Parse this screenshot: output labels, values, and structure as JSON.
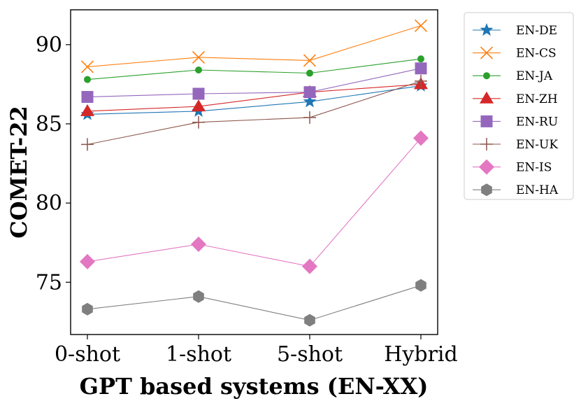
{
  "chart_data": {
    "type": "line",
    "title": "",
    "xlabel": "GPT based systems (EN-XX)",
    "ylabel": "COMET-22",
    "categories": [
      "0-shot",
      "1-shot",
      "5-shot",
      "Hybrid"
    ],
    "ylim": [
      71.7,
      92.2
    ],
    "yticks": [
      75,
      80,
      85,
      90
    ],
    "grid": false,
    "legend_position": "outside-right-top",
    "series": [
      {
        "name": "EN-DE",
        "values": [
          85.6,
          85.8,
          86.4,
          87.4
        ],
        "color": "#1f77b4",
        "marker": "star"
      },
      {
        "name": "EN-CS",
        "values": [
          88.6,
          89.2,
          89.0,
          91.2
        ],
        "color": "#ff7f0e",
        "marker": "x"
      },
      {
        "name": "EN-JA",
        "values": [
          87.8,
          88.4,
          88.2,
          89.1
        ],
        "color": "#2ca02c",
        "marker": "circle"
      },
      {
        "name": "EN-ZH",
        "values": [
          85.8,
          86.1,
          87.0,
          87.5
        ],
        "color": "#d62728",
        "marker": "triangle"
      },
      {
        "name": "EN-RU",
        "values": [
          86.7,
          86.9,
          87.0,
          88.5
        ],
        "color": "#9467bd",
        "marker": "square"
      },
      {
        "name": "EN-UK",
        "values": [
          83.7,
          85.1,
          85.4,
          87.7
        ],
        "color": "#8c564b",
        "marker": "plus"
      },
      {
        "name": "EN-IS",
        "values": [
          76.3,
          77.4,
          76.0,
          84.1
        ],
        "color": "#e377c2",
        "marker": "diamond"
      },
      {
        "name": "EN-HA",
        "values": [
          73.3,
          74.1,
          72.6,
          74.8
        ],
        "color": "#7f7f7f",
        "marker": "hexagon"
      }
    ]
  }
}
